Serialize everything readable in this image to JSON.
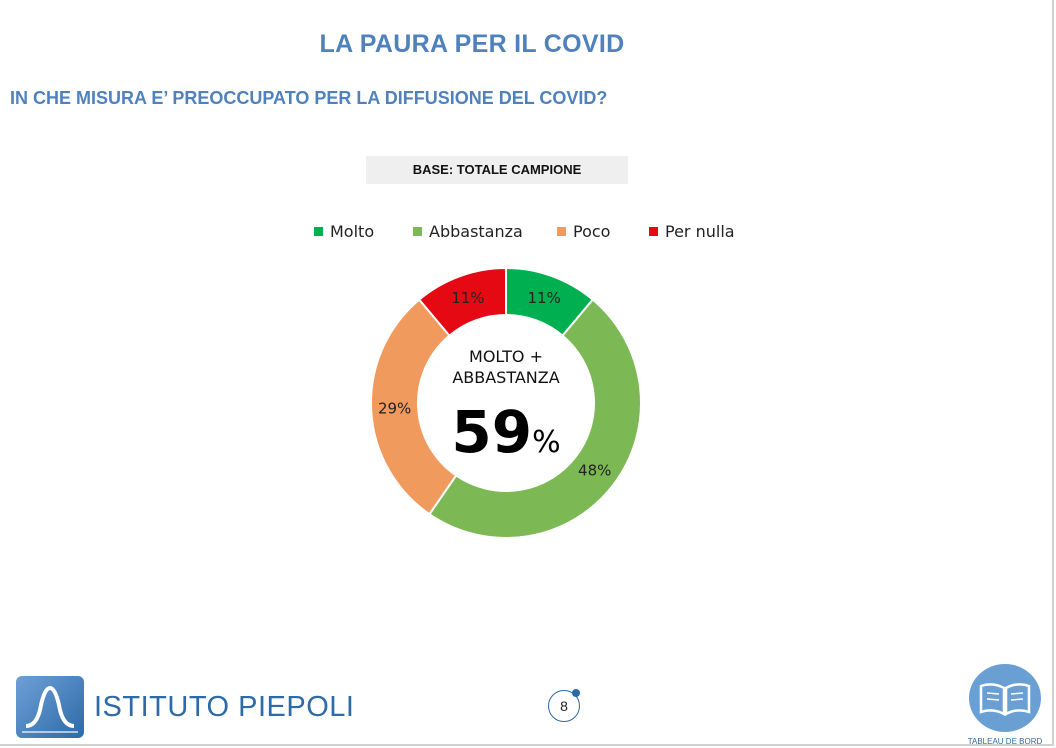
{
  "header": {
    "title": "LA PAURA PER IL COVID",
    "question": "IN CHE MISURA E’ PREOCCUPATO PER LA DIFFUSIONE DEL COVID?",
    "base": "BASE: TOTALE CAMPIONE"
  },
  "center": {
    "line1": "MOLTO +",
    "line2": "ABBASTANZA",
    "value": "59",
    "unit": "%"
  },
  "chart_data": {
    "type": "pie",
    "categories": [
      "Molto",
      "Abbastanza",
      "Poco",
      "Per nulla"
    ],
    "values": [
      11,
      48,
      29,
      11
    ],
    "labels": [
      "11%",
      "48%",
      "29%",
      "11%"
    ],
    "colors": [
      "#00b050",
      "#7cb955",
      "#f09a5e",
      "#e50914"
    ],
    "legend": "top",
    "donut": true
  },
  "footer": {
    "logo_text": "ISTITUTO PIEPOLI",
    "page_number": "8",
    "badge_caption": "TABLEAU DE BORD",
    "logo_icon": "piepoli-logo-icon",
    "badge_icon": "open-book-icon"
  }
}
